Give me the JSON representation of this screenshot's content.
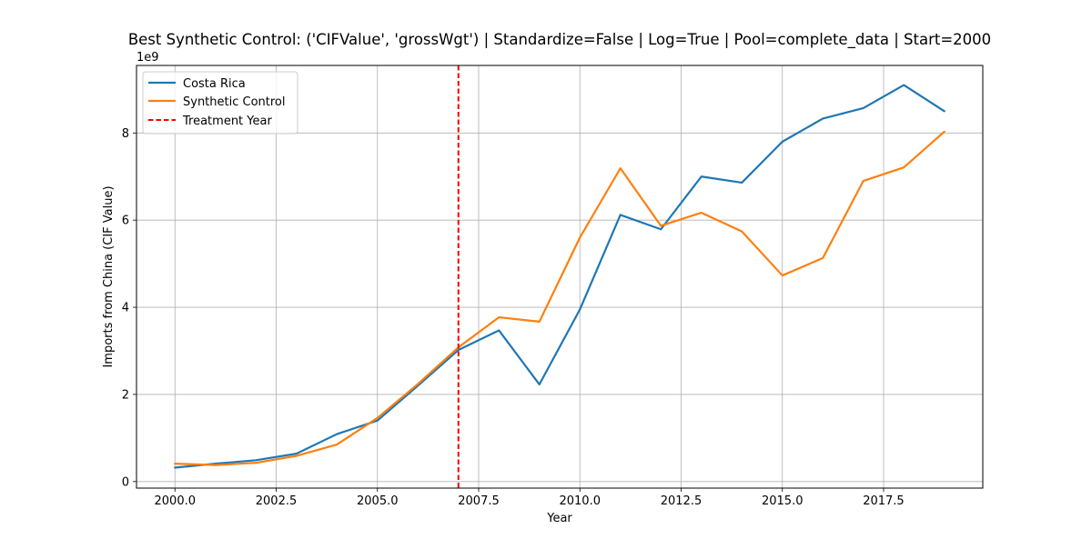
{
  "chart_data": {
    "type": "line",
    "title": "Best Synthetic Control: ('CIFValue', 'grossWgt') | Standardize=False | Log=True | Pool=complete_data | Start=2000",
    "xlabel": "Year",
    "ylabel": "Imports from China (CIF Value)",
    "y_offset_label": "1e9",
    "xlim": [
      1999.05,
      2019.95
    ],
    "ylim": [
      -0.15,
      9.55
    ],
    "x_ticks": [
      2000.0,
      2002.5,
      2005.0,
      2007.5,
      2010.0,
      2012.5,
      2015.0,
      2017.5
    ],
    "x_tick_labels": [
      "2000.0",
      "2002.5",
      "2005.0",
      "2007.5",
      "2010.0",
      "2012.5",
      "2015.0",
      "2017.5"
    ],
    "y_ticks": [
      0,
      2,
      4,
      6,
      8
    ],
    "y_tick_labels": [
      "0",
      "2",
      "4",
      "6",
      "8"
    ],
    "grid": true,
    "legend_position": "top-left",
    "series": [
      {
        "name": "Costa Rica",
        "color": "#1f77b4",
        "style": "solid",
        "x": [
          2000,
          2001,
          2002,
          2003,
          2004,
          2005,
          2006,
          2007,
          2008,
          2009,
          2010,
          2011,
          2012,
          2013,
          2014,
          2015,
          2016,
          2017,
          2018,
          2019
        ],
        "y": [
          0.32,
          0.41,
          0.49,
          0.64,
          1.09,
          1.4,
          2.2,
          3.02,
          3.47,
          2.23,
          3.95,
          6.12,
          5.79,
          7.0,
          6.86,
          7.8,
          8.33,
          8.57,
          9.1,
          8.5
        ]
      },
      {
        "name": "Synthetic Control",
        "color": "#ff7f0e",
        "style": "solid",
        "x": [
          2000,
          2001,
          2002,
          2003,
          2004,
          2005,
          2006,
          2007,
          2008,
          2009,
          2010,
          2011,
          2012,
          2013,
          2014,
          2015,
          2016,
          2017,
          2018,
          2019
        ],
        "y": [
          0.41,
          0.38,
          0.43,
          0.59,
          0.85,
          1.46,
          2.24,
          3.08,
          3.77,
          3.67,
          5.6,
          7.19,
          5.87,
          6.17,
          5.74,
          4.73,
          5.13,
          6.9,
          7.21,
          8.03
        ]
      }
    ],
    "vlines": [
      {
        "name": "Treatment Year",
        "x": 2007,
        "color": "#ff0000",
        "style": "dashed"
      }
    ]
  }
}
